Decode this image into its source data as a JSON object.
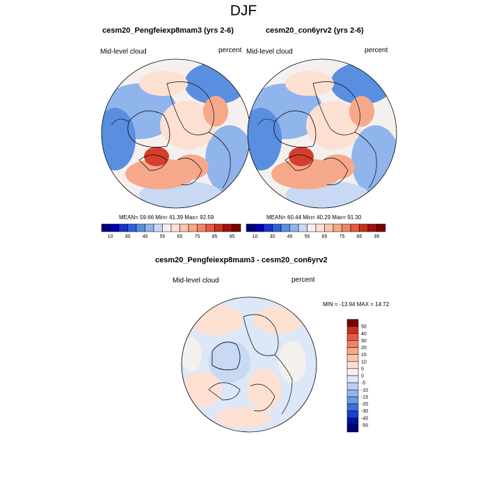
{
  "title": "DJF",
  "colors": {
    "hot": "#d53e2e",
    "warm": "#f6a88a",
    "mild": "#fde0d2",
    "neutral": "#f4f0ee",
    "cool": "#c8d9f4",
    "cold": "#90b4ec",
    "icy": "#5a8fe0",
    "coast": "#000000"
  },
  "panels": [
    {
      "title": "cesm20_Pengfeiexp8mam3 (yrs 2-6)",
      "left_label": "Mid-level cloud",
      "right_label": "percent",
      "stats": "MEAN=  59.66  Min=  41.39  Max=  92.59"
    },
    {
      "title": "cesm20_con6yrv2 (yrs 2-6)",
      "left_label": "Mid-level cloud",
      "right_label": "percent",
      "stats": "MEAN=  60.44  Min=  40.29  Max=  91.30"
    }
  ],
  "colorbar_top": {
    "colors": [
      "#00007f",
      "#0000b2",
      "#1a33cc",
      "#2e5fe0",
      "#5a8fe0",
      "#90b4ec",
      "#c8d9f4",
      "#f4f0ee",
      "#fde0d2",
      "#f9c5ad",
      "#f6a88a",
      "#f0846a",
      "#e35a3f",
      "#c8301f",
      "#a01010",
      "#7a0000"
    ],
    "labels": [
      "10",
      "30",
      "45",
      "55",
      "65",
      "75",
      "85",
      "95"
    ]
  },
  "diff_panel": {
    "title": "cesm20_Pengfeiexp8mam3 - cesm20_con6yrv2",
    "left_label": "Mid-level cloud",
    "right_label": "percent",
    "stats": "MIN = -13.94 MAX =  14.72"
  },
  "colorbar_diff": {
    "colors": [
      "#7a0000",
      "#c8301f",
      "#e35a3f",
      "#f0846a",
      "#f6a88a",
      "#f9c5ad",
      "#fde0d2",
      "#f4f0ee",
      "#dce7f7",
      "#b8cff2",
      "#90b4ec",
      "#6c9be4",
      "#3d6fd8",
      "#1a3fcc",
      "#0010a0",
      "#00006a"
    ],
    "labels": [
      "50",
      "40",
      "30",
      "20",
      "15",
      "10",
      "5",
      "0",
      "-5",
      "-10",
      "-15",
      "-20",
      "-30",
      "-40",
      "-50"
    ]
  }
}
